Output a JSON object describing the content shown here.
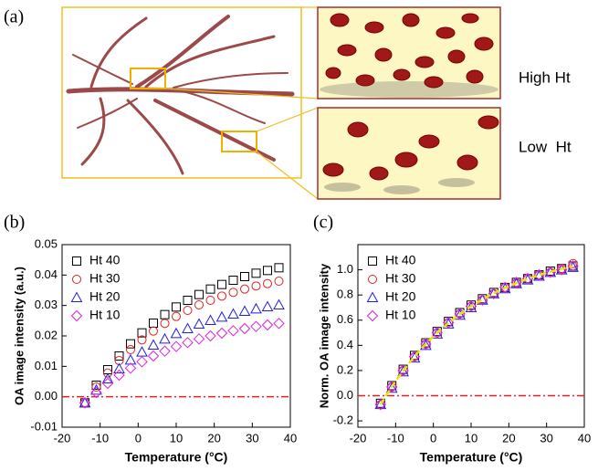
{
  "panel_a": {
    "label": "(a)",
    "high": "High Ht",
    "low": "Low  Ht"
  },
  "chart_data": [
    {
      "type": "scatter",
      "panel_label": "(b)",
      "ylabel": "OA image intensity (a.u.)",
      "xlabel": "Temperature (°C)",
      "xlim": [
        -20,
        40
      ],
      "xticks": [
        -20,
        -10,
        0,
        10,
        20,
        30,
        40
      ],
      "ylim": [
        -0.01,
        0.05
      ],
      "yticks": [
        {
          "value": -0.01,
          "label": "-0.01"
        },
        {
          "value": 0,
          "label": "0.00"
        },
        0.01,
        0.02,
        0.03,
        0.04,
        0.05
      ],
      "legend": "upper left",
      "reference_line": {
        "value": 0,
        "color": "#e02020"
      },
      "x": [
        -14,
        -11,
        -8,
        -5,
        -2,
        1,
        4,
        7,
        10,
        13,
        16,
        19,
        22,
        25,
        28,
        31,
        34,
        37
      ],
      "series": [
        {
          "name": "Ht 40",
          "color": "#000000",
          "marker": "square",
          "values": [
            -0.002,
            0.0038,
            0.0089,
            0.0134,
            0.0174,
            0.021,
            0.0242,
            0.027,
            0.0295,
            0.0317,
            0.0336,
            0.0354,
            0.0369,
            0.0383,
            0.0395,
            0.0406,
            0.0415,
            0.0424
          ]
        },
        {
          "name": "Ht 30",
          "color": "#e02020",
          "marker": "circle",
          "values": [
            -0.002,
            0.0032,
            0.0078,
            0.0119,
            0.0155,
            0.0187,
            0.0216,
            0.0241,
            0.0264,
            0.0284,
            0.0302,
            0.0317,
            0.0331,
            0.0343,
            0.0354,
            0.0364,
            0.0372,
            0.038
          ]
        },
        {
          "name": "Ht 20",
          "color": "#2020e0",
          "marker": "triangle",
          "values": [
            -0.002,
            0.0022,
            0.0059,
            0.0092,
            0.0121,
            0.0147,
            0.017,
            0.019,
            0.0208,
            0.0224,
            0.0239,
            0.0251,
            0.0262,
            0.0272,
            0.0281,
            0.0289,
            0.0296,
            0.0302
          ]
        },
        {
          "name": "Ht 10",
          "color": "#e020e0",
          "marker": "diamond",
          "values": [
            -0.002,
            0.0014,
            0.0044,
            0.0071,
            0.0094,
            0.0115,
            0.0134,
            0.015,
            0.0165,
            0.0178,
            0.019,
            0.02,
            0.0209,
            0.0217,
            0.0224,
            0.0231,
            0.0236,
            0.0241
          ]
        }
      ]
    },
    {
      "type": "scatter",
      "panel_label": "(c)",
      "ylabel": "Norm. OA image intensity",
      "xlabel": "Temperature (°C)",
      "xlim": [
        -20,
        40
      ],
      "xticks": [
        -20,
        -10,
        0,
        10,
        20,
        30,
        40
      ],
      "ylim": [
        -0.25,
        1.2
      ],
      "yticks": [
        -0.2,
        {
          "value": 0,
          "label": "0.0"
        },
        0.2,
        0.4,
        0.6,
        0.8,
        {
          "value": 1,
          "label": "1.0"
        }
      ],
      "legend": "upper left",
      "reference_line": {
        "value": 0,
        "color": "#e02020"
      },
      "x": [
        -14,
        -11,
        -8,
        -5,
        -2,
        1,
        4,
        7,
        10,
        13,
        16,
        19,
        22,
        25,
        28,
        31,
        34,
        37
      ],
      "series": [
        {
          "name": "Ht 40",
          "color": "#000000",
          "marker": "square",
          "values": [
            -0.06,
            0.08,
            0.21,
            0.32,
            0.42,
            0.51,
            0.59,
            0.66,
            0.72,
            0.77,
            0.82,
            0.86,
            0.9,
            0.93,
            0.96,
            0.99,
            1.01,
            1.03
          ]
        },
        {
          "name": "Ht 30",
          "color": "#e02020",
          "marker": "circle",
          "values": [
            -0.07,
            0.07,
            0.2,
            0.31,
            0.41,
            0.5,
            0.58,
            0.65,
            0.71,
            0.76,
            0.81,
            0.86,
            0.89,
            0.93,
            0.96,
            0.98,
            1.01,
            1.05
          ]
        },
        {
          "name": "Ht 20",
          "color": "#2020e0",
          "marker": "triangle",
          "values": [
            -0.07,
            0.06,
            0.19,
            0.3,
            0.4,
            0.49,
            0.57,
            0.64,
            0.7,
            0.76,
            0.81,
            0.85,
            0.89,
            0.92,
            0.95,
            0.98,
            1.0,
            1.02
          ]
        },
        {
          "name": "Ht 10",
          "color": "#e020e0",
          "marker": "diamond",
          "values": [
            -0.07,
            0.07,
            0.2,
            0.31,
            0.41,
            0.5,
            0.58,
            0.65,
            0.71,
            0.76,
            0.81,
            0.86,
            0.9,
            0.93,
            0.96,
            0.98,
            1.0,
            1.03
          ]
        }
      ],
      "fit": {
        "color": "#f0e000",
        "values": [
          -0.07,
          0.073,
          0.199,
          0.312,
          0.412,
          0.5,
          0.578,
          0.648,
          0.71,
          0.764,
          0.814,
          0.857,
          0.894,
          0.929,
          0.959,
          0.985,
          1.008,
          1.03
        ]
      }
    }
  ]
}
